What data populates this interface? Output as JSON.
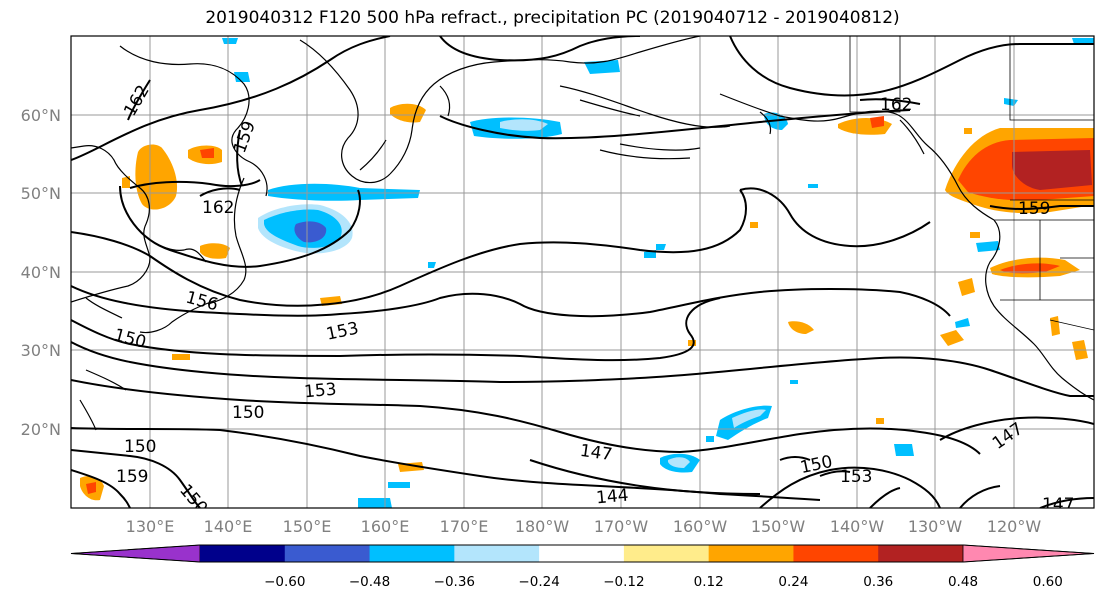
{
  "title": "2019040312 F120 500 hPa refract., precipitation PC (2019040712 - 2019040812)",
  "lat_labels": [
    "60°N",
    "50°N",
    "40°N",
    "30°N",
    "20°N"
  ],
  "lon_labels": [
    "130°E",
    "140°E",
    "150°E",
    "160°E",
    "170°E",
    "180°W",
    "170°W",
    "160°W",
    "150°W",
    "140°W",
    "130°W",
    "120°W"
  ],
  "contour_labels": [
    "162",
    "159",
    "162",
    "156",
    "153",
    "150",
    "153",
    "150",
    "150",
    "159",
    "147",
    "144",
    "150",
    "153",
    "162",
    "159",
    "147",
    "147",
    "150"
  ],
  "colorbar": {
    "tick_labels": [
      "−0.60",
      "−0.48",
      "−0.36",
      "−0.24",
      "−0.12",
      "0.12",
      "0.24",
      "0.36",
      "0.48",
      "0.60"
    ],
    "colors": [
      "#9932cc",
      "#00008b",
      "#3a5bd0",
      "#00bfff",
      "#b3e5fc",
      "#ffffff",
      "#ffec8b",
      "#ffa500",
      "#ff4500",
      "#b22222",
      "#ff88b0"
    ]
  },
  "colors": {
    "grid": "#999999",
    "axis_label": "#808080",
    "contour": "#000000",
    "coast": "#000000"
  }
}
